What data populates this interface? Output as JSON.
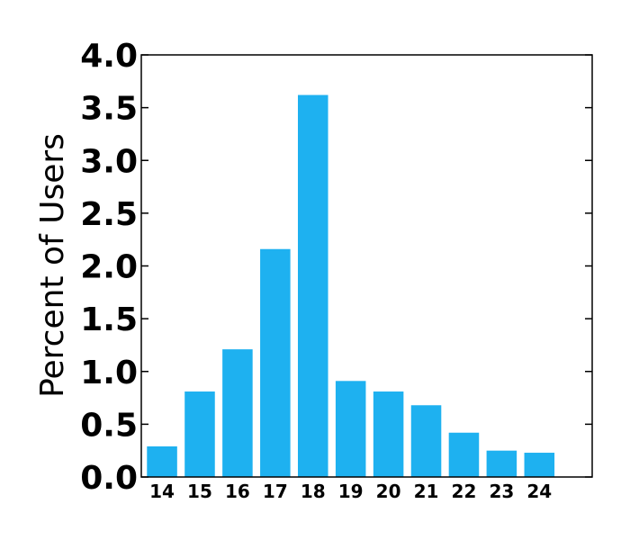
{
  "chart_data": {
    "type": "bar",
    "ylabel": "Percent of Users",
    "xlabel": "",
    "title": "",
    "categories": [
      "14",
      "15",
      "16",
      "17",
      "18",
      "19",
      "20",
      "21",
      "22",
      "23",
      "24"
    ],
    "values": [
      0.29,
      0.81,
      1.21,
      2.16,
      3.62,
      0.91,
      0.81,
      0.68,
      0.42,
      0.25,
      0.23
    ],
    "ylim": [
      0,
      4.0
    ],
    "yticks": [
      "0.0",
      "0.5",
      "1.0",
      "1.5",
      "2.0",
      "2.5",
      "3.0",
      "3.5",
      "4.0"
    ],
    "grid": false,
    "bar_color": "#1eb1f0"
  }
}
